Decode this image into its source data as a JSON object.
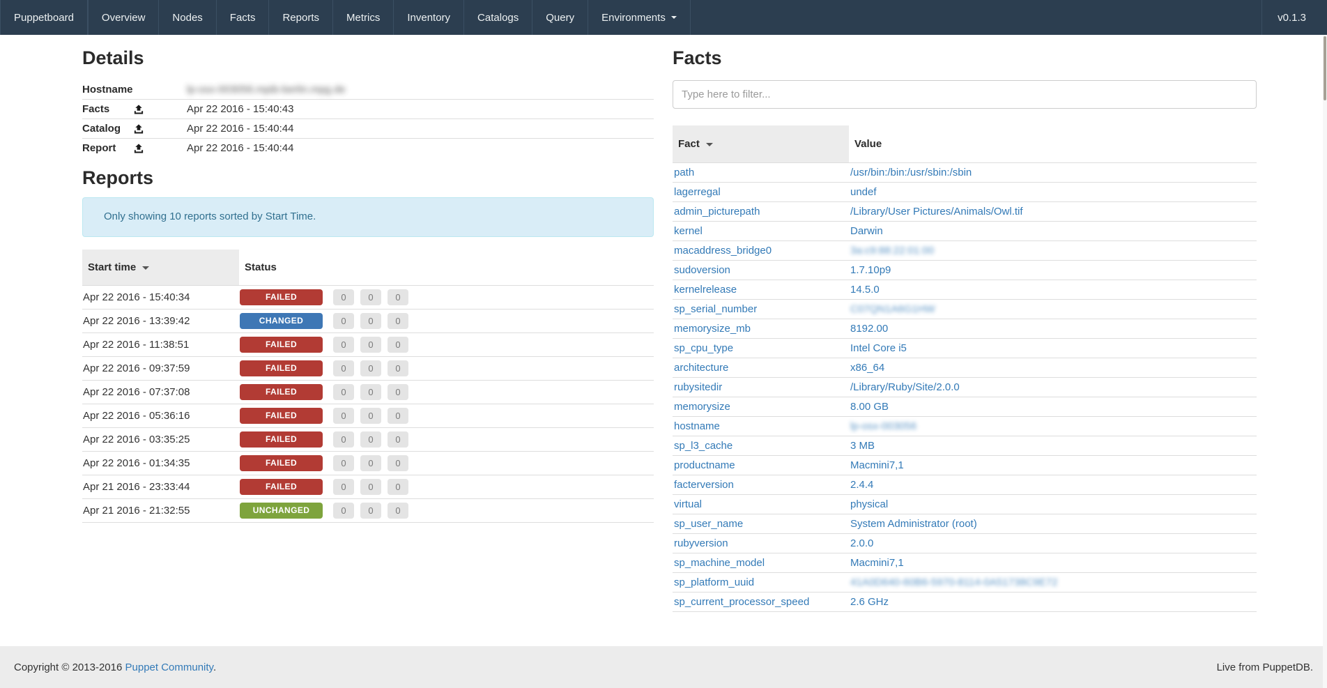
{
  "navbar": {
    "brand": "Puppetboard",
    "items": [
      {
        "label": "Overview"
      },
      {
        "label": "Nodes"
      },
      {
        "label": "Facts"
      },
      {
        "label": "Reports"
      },
      {
        "label": "Metrics"
      },
      {
        "label": "Inventory"
      },
      {
        "label": "Catalogs"
      },
      {
        "label": "Query"
      },
      {
        "label": "Environments",
        "caret": true
      }
    ],
    "version": "v0.1.3"
  },
  "details": {
    "title": "Details",
    "rows": [
      {
        "label": "Hostname",
        "icon": null,
        "value": "lp-osx-003056.mpib-berlin.mpg.de",
        "blurred": true
      },
      {
        "label": "Facts",
        "icon": "upload-icon",
        "value": "Apr 22 2016 - 15:40:43",
        "blurred": false
      },
      {
        "label": "Catalog",
        "icon": "upload-icon",
        "value": "Apr 22 2016 - 15:40:44",
        "blurred": false
      },
      {
        "label": "Report",
        "icon": "upload-icon",
        "value": "Apr 22 2016 - 15:40:44",
        "blurred": false
      }
    ]
  },
  "reports": {
    "title": "Reports",
    "notice": "Only showing 10 reports sorted by Start Time.",
    "columns": {
      "start_time": "Start time",
      "status": "Status"
    },
    "sorted_column": "start_time",
    "status_colors": {
      "FAILED": "#b23b34",
      "CHANGED": "#3e77b5",
      "UNCHANGED": "#7ea43d"
    },
    "rows": [
      {
        "start_time": "Apr 22 2016 - 15:40:34",
        "status": "FAILED",
        "counts": [
          0,
          0,
          0
        ]
      },
      {
        "start_time": "Apr 22 2016 - 13:39:42",
        "status": "CHANGED",
        "counts": [
          0,
          0,
          0
        ]
      },
      {
        "start_time": "Apr 22 2016 - 11:38:51",
        "status": "FAILED",
        "counts": [
          0,
          0,
          0
        ]
      },
      {
        "start_time": "Apr 22 2016 - 09:37:59",
        "status": "FAILED",
        "counts": [
          0,
          0,
          0
        ]
      },
      {
        "start_time": "Apr 22 2016 - 07:37:08",
        "status": "FAILED",
        "counts": [
          0,
          0,
          0
        ]
      },
      {
        "start_time": "Apr 22 2016 - 05:36:16",
        "status": "FAILED",
        "counts": [
          0,
          0,
          0
        ]
      },
      {
        "start_time": "Apr 22 2016 - 03:35:25",
        "status": "FAILED",
        "counts": [
          0,
          0,
          0
        ]
      },
      {
        "start_time": "Apr 22 2016 - 01:34:35",
        "status": "FAILED",
        "counts": [
          0,
          0,
          0
        ]
      },
      {
        "start_time": "Apr 21 2016 - 23:33:44",
        "status": "FAILED",
        "counts": [
          0,
          0,
          0
        ]
      },
      {
        "start_time": "Apr 21 2016 - 21:32:55",
        "status": "UNCHANGED",
        "counts": [
          0,
          0,
          0
        ]
      }
    ]
  },
  "facts": {
    "title": "Facts",
    "filter_placeholder": "Type here to filter...",
    "columns": {
      "fact": "Fact",
      "value": "Value"
    },
    "sorted_column": "fact",
    "rows": [
      {
        "name": "path",
        "value": "/usr/bin:/bin:/usr/sbin:/sbin",
        "blurred": false
      },
      {
        "name": "lagerregal",
        "value": "undef",
        "blurred": false
      },
      {
        "name": "admin_picturepath",
        "value": "/Library/User Pictures/Animals/Owl.tif",
        "blurred": false
      },
      {
        "name": "kernel",
        "value": "Darwin",
        "blurred": false
      },
      {
        "name": "macaddress_bridge0",
        "value": "3a:c9:88:22:01:00",
        "blurred": true
      },
      {
        "name": "sudoversion",
        "value": "1.7.10p9",
        "blurred": false
      },
      {
        "name": "kernelrelease",
        "value": "14.5.0",
        "blurred": false
      },
      {
        "name": "sp_serial_number",
        "value": "C07QN1A6G1HW",
        "blurred": true
      },
      {
        "name": "memorysize_mb",
        "value": "8192.00",
        "blurred": false
      },
      {
        "name": "sp_cpu_type",
        "value": "Intel Core i5",
        "blurred": false
      },
      {
        "name": "architecture",
        "value": "x86_64",
        "blurred": false
      },
      {
        "name": "rubysitedir",
        "value": "/Library/Ruby/Site/2.0.0",
        "blurred": false
      },
      {
        "name": "memorysize",
        "value": "8.00 GB",
        "blurred": false
      },
      {
        "name": "hostname",
        "value": "lp-osx-003056",
        "blurred": true
      },
      {
        "name": "sp_l3_cache",
        "value": "3 MB",
        "blurred": false
      },
      {
        "name": "productname",
        "value": "Macmini7,1",
        "blurred": false
      },
      {
        "name": "facterversion",
        "value": "2.4.4",
        "blurred": false
      },
      {
        "name": "virtual",
        "value": "physical",
        "blurred": false
      },
      {
        "name": "sp_user_name",
        "value": "System Administrator (root)",
        "blurred": false
      },
      {
        "name": "rubyversion",
        "value": "2.0.0",
        "blurred": false
      },
      {
        "name": "sp_machine_model",
        "value": "Macmini7,1",
        "blurred": false
      },
      {
        "name": "sp_platform_uuid",
        "value": "41A0D640-60B6-5970-8114-0A51738C9E72",
        "blurred": true
      },
      {
        "name": "sp_current_processor_speed",
        "value": "2.6 GHz",
        "blurred": false
      }
    ]
  },
  "footer": {
    "copyright_prefix": "Copyright © 2013-2016 ",
    "copyright_link": "Puppet Community",
    "copyright_suffix": ".",
    "live_text": "Live from PuppetDB."
  },
  "colors": {
    "navbar_bg": "#2c3e50",
    "link": "#337ab7",
    "alert_bg": "#d9edf7",
    "alert_border": "#bce8f1",
    "alert_text": "#31708f",
    "status_failed": "#b23b34",
    "status_changed": "#3e77b5",
    "status_unchanged": "#7ea43d",
    "counter_bg": "#e4e4e4",
    "footer_bg": "#ececec"
  }
}
